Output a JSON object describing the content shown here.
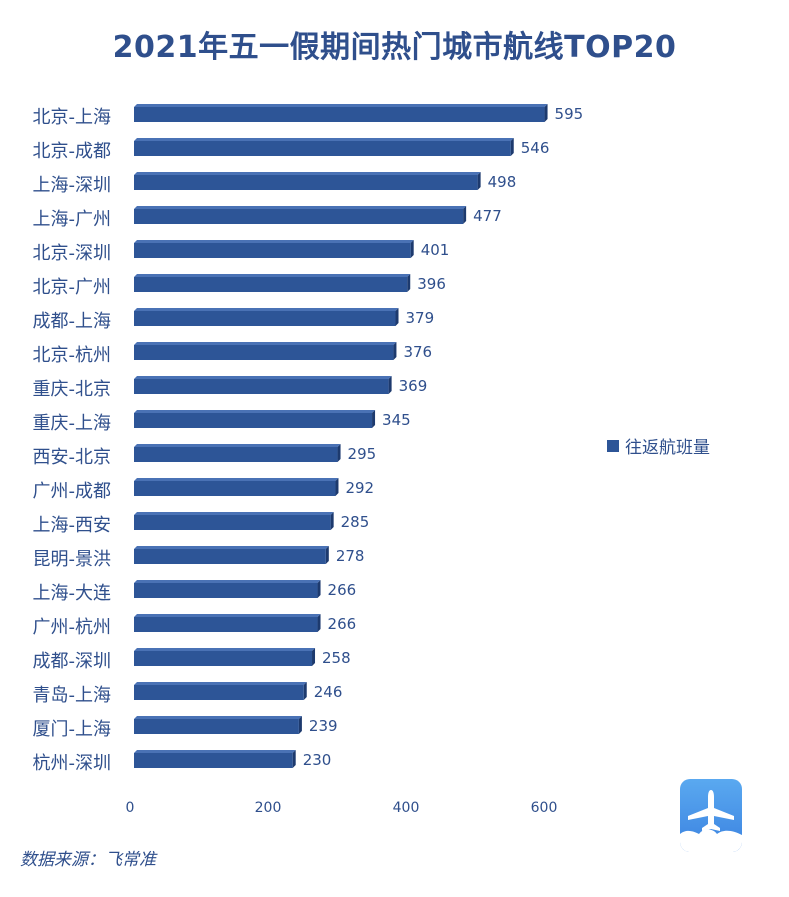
{
  "chart_data": {
    "type": "bar",
    "orientation": "horizontal",
    "title": "2021年五一假期间热门城市航线TOP20",
    "categories": [
      "北京-上海",
      "北京-成都",
      "上海-深圳",
      "上海-广州",
      "北京-深圳",
      "北京-广州",
      "成都-上海",
      "北京-杭州",
      "重庆-北京",
      "重庆-上海",
      "西安-北京",
      "广州-成都",
      "上海-西安",
      "昆明-景洪",
      "上海-大连",
      "广州-杭州",
      "成都-深圳",
      "青岛-上海",
      "厦门-上海",
      "杭州-深圳"
    ],
    "series": [
      {
        "name": "往返航班量",
        "values": [
          595,
          546,
          498,
          477,
          401,
          396,
          379,
          376,
          369,
          345,
          295,
          292,
          285,
          278,
          266,
          266,
          258,
          246,
          239,
          230
        ]
      }
    ],
    "xlim": [
      0,
      600
    ],
    "x_ticks": [
      "0",
      "200",
      "400",
      "600"
    ],
    "grid": false,
    "legend_position": "right"
  },
  "source_note": "数据来源：飞常准",
  "colors": {
    "title": "#2f4f8c",
    "bar_front": "#2d5597",
    "bar_top": "#4a72b5",
    "bar_side": "#1d3a6e",
    "text": "#2f4f8c"
  },
  "logo": {
    "icon": "airplane-cloud-icon"
  }
}
